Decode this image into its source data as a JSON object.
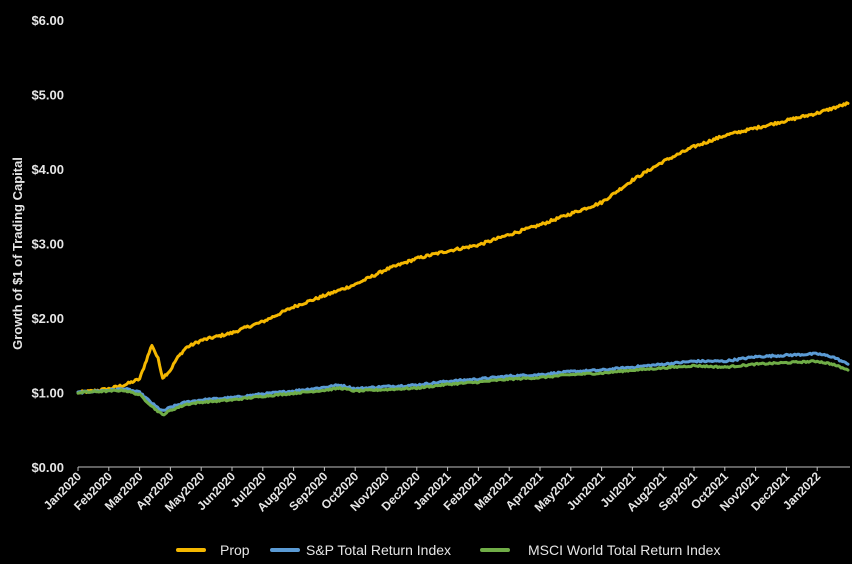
{
  "chart_data": {
    "type": "line",
    "ylabel": "Growth of $1 of Trading Capital",
    "xlabel": "",
    "ylim": [
      0,
      6
    ],
    "yticks": [
      "$0.00",
      "$1.00",
      "$2.00",
      "$3.00",
      "$4.00",
      "$5.00",
      "$6.00"
    ],
    "ytick_values": [
      0,
      1,
      2,
      3,
      4,
      5,
      6
    ],
    "categories": [
      "Jan2020",
      "Feb2020",
      "Mar2020",
      "Apr2020",
      "May2020",
      "Jun2020",
      "Jul2020",
      "Aug2020",
      "Sep2020",
      "Oct2020",
      "Nov2020",
      "Dec2020",
      "Jan2021",
      "Feb2021",
      "Mar2021",
      "Apr2021",
      "May2021",
      "Jun2021",
      "Jul2021",
      "Aug2021",
      "Sep2021",
      "Oct2021",
      "Nov2021",
      "Dec2021",
      "Jan2022"
    ],
    "x_end": 25.0,
    "grid": false,
    "legend_position": "bottom",
    "series": [
      {
        "name": "Prop",
        "color": "#F5B800",
        "x": [
          0,
          0.5,
          1.0,
          1.5,
          2.0,
          2.4,
          2.6,
          2.75,
          3.0,
          3.2,
          3.5,
          4.0,
          4.5,
          5.0,
          5.5,
          6.0,
          7.0,
          8.0,
          9.0,
          10.0,
          11.0,
          12.0,
          13.0,
          14.0,
          15.0,
          16.0,
          17.0,
          17.5,
          18.0,
          19.0,
          20.0,
          21.0,
          22.0,
          23.0,
          24.0,
          25.0
        ],
        "values": [
          1.0,
          1.02,
          1.05,
          1.1,
          1.18,
          1.64,
          1.45,
          1.2,
          1.3,
          1.45,
          1.6,
          1.7,
          1.75,
          1.8,
          1.88,
          1.95,
          2.15,
          2.3,
          2.45,
          2.65,
          2.8,
          2.9,
          2.98,
          3.12,
          3.25,
          3.4,
          3.55,
          3.7,
          3.85,
          4.1,
          4.3,
          4.45,
          4.55,
          4.65,
          4.75,
          4.88
        ]
      },
      {
        "name": "S&P Total Return Index",
        "color": "#5B9BD5",
        "x": [
          0,
          1.0,
          1.5,
          2.0,
          2.5,
          2.75,
          3.0,
          3.5,
          4.0,
          5.0,
          6.0,
          7.0,
          8.0,
          8.5,
          9.0,
          10.0,
          11.0,
          12.0,
          13.0,
          14.0,
          15.0,
          16.0,
          17.0,
          18.0,
          19.0,
          20.0,
          21.0,
          22.0,
          23.0,
          24.0,
          24.5,
          25.0
        ],
        "values": [
          1.0,
          1.03,
          1.05,
          1.0,
          0.82,
          0.75,
          0.8,
          0.87,
          0.9,
          0.93,
          0.98,
          1.02,
          1.07,
          1.1,
          1.05,
          1.08,
          1.1,
          1.15,
          1.18,
          1.22,
          1.24,
          1.28,
          1.3,
          1.34,
          1.38,
          1.42,
          1.42,
          1.48,
          1.5,
          1.52,
          1.48,
          1.38
        ]
      },
      {
        "name": "MSCI World Total Return Index",
        "color": "#70AD47",
        "x": [
          0,
          1.0,
          1.5,
          2.0,
          2.5,
          2.75,
          3.0,
          3.5,
          4.0,
          5.0,
          6.0,
          7.0,
          8.0,
          8.5,
          9.0,
          10.0,
          11.0,
          12.0,
          13.0,
          14.0,
          15.0,
          16.0,
          17.0,
          18.0,
          19.0,
          20.0,
          21.0,
          22.0,
          23.0,
          24.0,
          24.5,
          25.0
        ],
        "values": [
          1.0,
          1.02,
          1.03,
          0.97,
          0.78,
          0.7,
          0.76,
          0.84,
          0.87,
          0.9,
          0.95,
          0.99,
          1.03,
          1.06,
          1.02,
          1.04,
          1.06,
          1.11,
          1.14,
          1.18,
          1.2,
          1.24,
          1.26,
          1.3,
          1.33,
          1.36,
          1.34,
          1.38,
          1.4,
          1.42,
          1.38,
          1.3
        ]
      }
    ]
  }
}
